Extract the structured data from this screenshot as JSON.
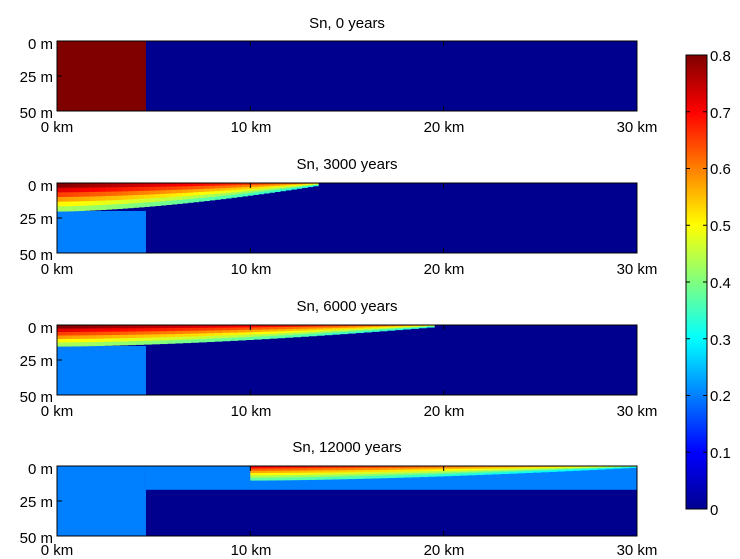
{
  "chart_data": [
    {
      "type": "heatmap",
      "title": "Sn, 0 years",
      "xlabel": "",
      "ylabel": "",
      "x_ticks": [
        "0 km",
        "10 km",
        "20 km",
        "30 km"
      ],
      "y_ticks": [
        "0 m",
        "25 m",
        "50 m"
      ],
      "xlim": [
        0,
        30
      ],
      "ylim": [
        0,
        50
      ],
      "background_value": 0.0,
      "regions": [
        {
          "x_from": 0,
          "x_to": 4.6,
          "depth_top": 0,
          "depth_bottom": 50,
          "value": 0.8
        }
      ]
    },
    {
      "type": "heatmap",
      "title": "Sn, 3000 years",
      "xlabel": "",
      "ylabel": "",
      "x_ticks": [
        "0 km",
        "10 km",
        "20 km",
        "30 km"
      ],
      "y_ticks": [
        "0 m",
        "25 m",
        "50 m"
      ],
      "xlim": [
        0,
        30
      ],
      "ylim": [
        0,
        50
      ],
      "background_value": 0.0,
      "regions": [
        {
          "x_from": 0,
          "x_to": 4.6,
          "depth_top": 20,
          "depth_bottom": 50,
          "value": 0.2
        },
        {
          "x_from": 0,
          "x_to": 13.5,
          "depth_top": 0,
          "depth_bottom": 20,
          "value": 0.8,
          "plume": true
        }
      ]
    },
    {
      "type": "heatmap",
      "title": "Sn, 6000 years",
      "xlabel": "",
      "ylabel": "",
      "x_ticks": [
        "0 km",
        "10 km",
        "20 km",
        "30 km"
      ],
      "y_ticks": [
        "0 m",
        "25 m",
        "50 m"
      ],
      "xlim": [
        0,
        30
      ],
      "ylim": [
        0,
        50
      ],
      "background_value": 0.0,
      "regions": [
        {
          "x_from": 0,
          "x_to": 4.6,
          "depth_top": 15,
          "depth_bottom": 50,
          "value": 0.2
        },
        {
          "x_from": 0,
          "x_to": 19.5,
          "depth_top": 0,
          "depth_bottom": 15,
          "value": 0.8,
          "plume": true
        }
      ]
    },
    {
      "type": "heatmap",
      "title": "Sn, 12000 years",
      "xlabel": "",
      "ylabel": "",
      "x_ticks": [
        "0 km",
        "10 km",
        "20 km",
        "30 km"
      ],
      "y_ticks": [
        "0 m",
        "25 m",
        "50 m"
      ],
      "xlim": [
        0,
        30
      ],
      "ylim": [
        0,
        50
      ],
      "background_value": 0.0,
      "regions": [
        {
          "x_from": 0,
          "x_to": 4.6,
          "depth_top": 0,
          "depth_bottom": 50,
          "value": 0.2
        },
        {
          "x_from": 4.6,
          "x_to": 30,
          "depth_top": 0,
          "depth_bottom": 17,
          "value": 0.2
        },
        {
          "x_from": 10,
          "x_to": 30,
          "depth_top": 0,
          "depth_bottom": 10,
          "value": 0.7,
          "plume": true
        }
      ]
    }
  ],
  "colorbar": {
    "min": 0,
    "max": 0.8,
    "ticks": [
      "0",
      "0.1",
      "0.2",
      "0.3",
      "0.4",
      "0.5",
      "0.6",
      "0.7",
      "0.8"
    ],
    "colormap": "jet"
  }
}
